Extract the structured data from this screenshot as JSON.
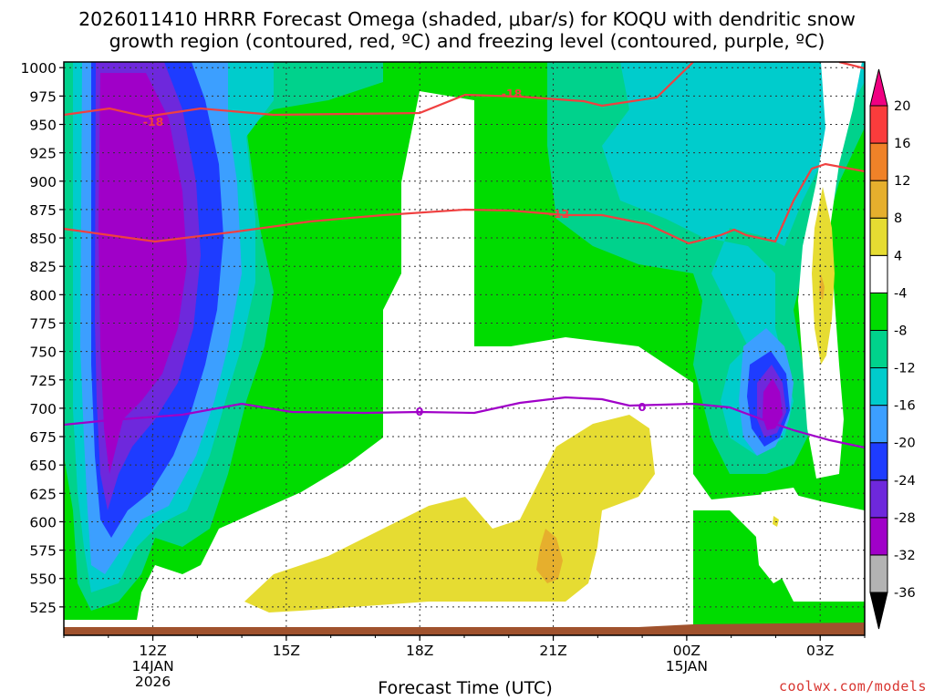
{
  "title": {
    "line1": "2026011410 HRRR Forecast Omega (shaded, μbar/s) for KOQU with dendritic snow",
    "line2": "growth region (contoured, red, ºC) and freezing level (contoured, purple, ºC)"
  },
  "credit": "coolwx.com/models",
  "chart_data": {
    "type": "heatmap",
    "xlabel": "Forecast Time (UTC)",
    "x_ticks": [
      {
        "t": 12,
        "label": "12Z",
        "sub1": "14JAN",
        "sub2": "2026"
      },
      {
        "t": 15,
        "label": "15Z",
        "sub1": "",
        "sub2": ""
      },
      {
        "t": 18,
        "label": "18Z",
        "sub1": "",
        "sub2": ""
      },
      {
        "t": 21,
        "label": "21Z",
        "sub1": "",
        "sub2": ""
      },
      {
        "t": 24,
        "label": "00Z",
        "sub1": "15JAN",
        "sub2": ""
      },
      {
        "t": 27,
        "label": "03Z",
        "sub1": "",
        "sub2": ""
      }
    ],
    "xlim": [
      10,
      28
    ],
    "y_ticks": [
      525,
      550,
      575,
      600,
      625,
      650,
      675,
      700,
      725,
      750,
      775,
      800,
      825,
      850,
      875,
      900,
      925,
      950,
      975,
      1000
    ],
    "ylim": [
      1005,
      500
    ],
    "grid": true,
    "colorbar": {
      "levels": [
        -36,
        -32,
        -28,
        -24,
        -20,
        -16,
        -12,
        -8,
        -4,
        4,
        8,
        12,
        16,
        20
      ],
      "colors": [
        "#000000",
        "#b3b3b3",
        "#a000c8",
        "#6e28dc",
        "#1e3cff",
        "#3c9fff",
        "#00cccc",
        "#00d28c",
        "#00dc00",
        "#ffffff",
        "#e6dc32",
        "#e6af2d",
        "#f08228",
        "#fa3c3c",
        "#f00082"
      ]
    },
    "contours": {
      "dgz_labels": [
        "-18",
        "-12"
      ],
      "freezing_label": "0"
    }
  }
}
